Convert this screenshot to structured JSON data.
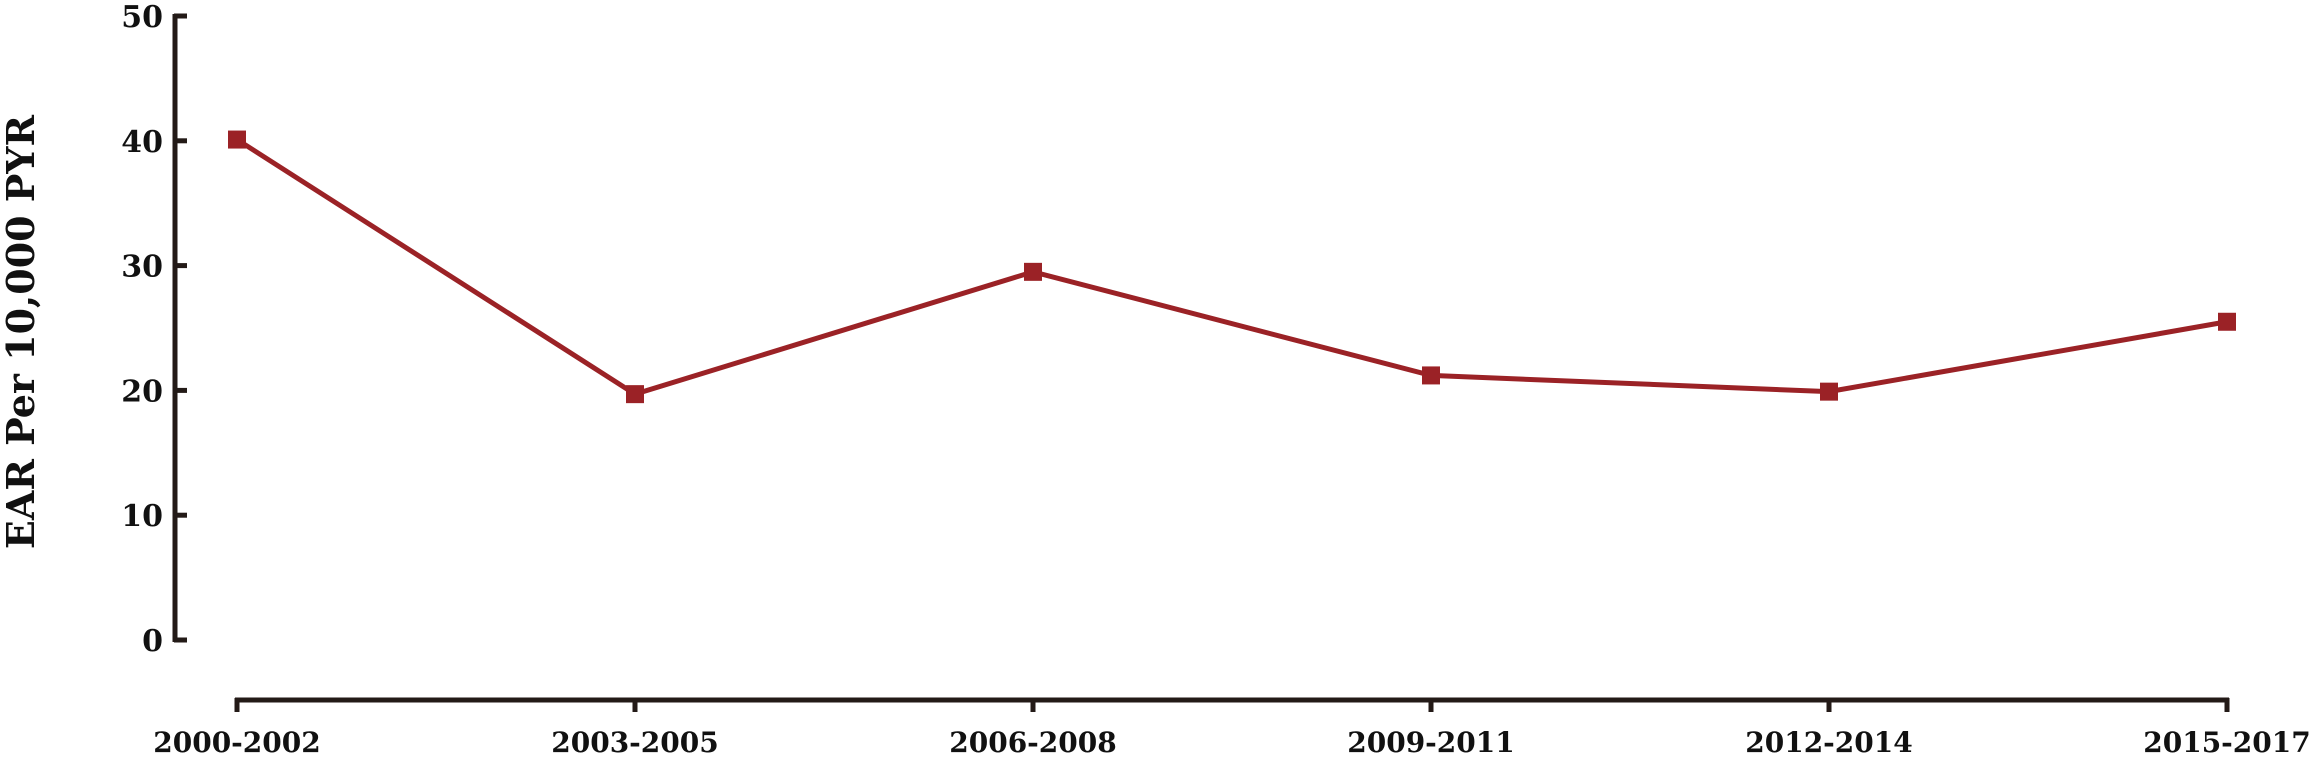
{
  "chart_data": {
    "type": "line",
    "title": "",
    "xlabel": "",
    "ylabel": "EAR Per 10,000 PYR",
    "categories": [
      "2000-2002",
      "2003-2005",
      "2006-2008",
      "2009-2011",
      "2012-2014",
      "2015-2017"
    ],
    "series": [
      {
        "values": [
          40.1,
          19.7,
          29.5,
          21.2,
          19.9,
          25.5
        ]
      }
    ],
    "ylim": [
      0,
      50
    ],
    "yticks": [
      "0",
      "10",
      "20",
      "30",
      "40",
      "50"
    ],
    "grid": false,
    "legend": "none",
    "colors": {
      "line": "#9b2226",
      "axis": "#231a17"
    }
  }
}
